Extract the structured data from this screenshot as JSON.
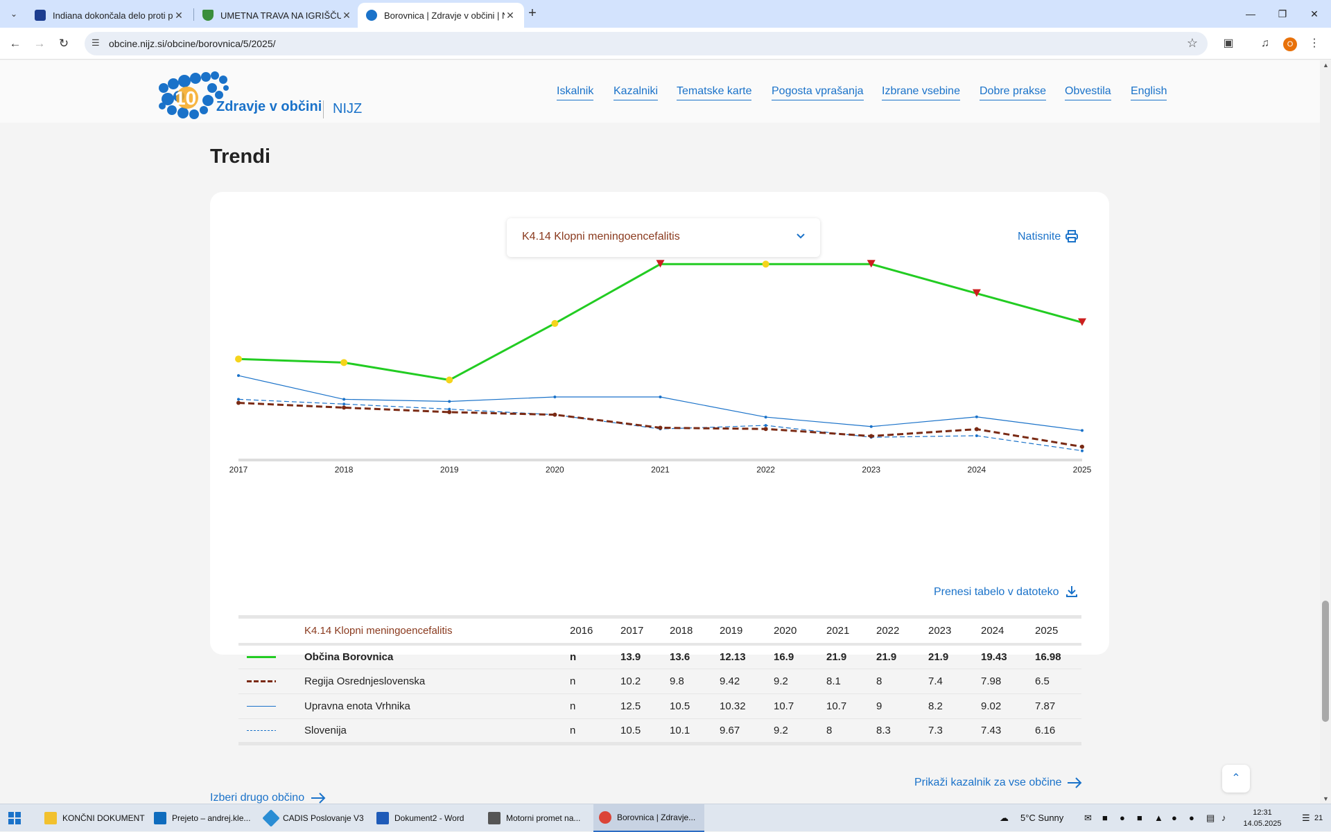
{
  "browser": {
    "tabs": [
      {
        "title": "Indiana dokončala delo proti pr",
        "active": false
      },
      {
        "title": "UMETNA TRAVA NA IGRIŠČU V",
        "active": false
      },
      {
        "title": "Borovnica | Zdravje v občini | NI",
        "active": true
      }
    ],
    "url": "obcine.nijz.si/obcine/borovnica/5/2025/",
    "profile_initial": "O"
  },
  "header": {
    "logo_number": "10",
    "logo_text": "Zdravje v občini",
    "logo_org": "NIJZ",
    "nav": [
      "Iskalnik",
      "Kazalniki",
      "Tematske karte",
      "Pogosta vprašanja",
      "Izbrane vsebine",
      "Dobre prakse",
      "Obvestila",
      "English"
    ]
  },
  "section": {
    "title": "Trendi",
    "indicator_select": "K4.14 Klopni meningoencefalitis",
    "print_label": "Natisnite",
    "download_label": "Prenesi tabelo v datoteko",
    "all_municipalities_label": "Prikaži kazalnik za vse občine",
    "other_municipality_label": "Izberi drugo občino"
  },
  "chart_data": {
    "type": "line",
    "title": "K4.14 Klopni meningoencefalitis",
    "x": [
      "2017",
      "2018",
      "2019",
      "2020",
      "2021",
      "2022",
      "2023",
      "2024",
      "2025"
    ],
    "ylim": [
      5.5,
      22.5
    ],
    "series": [
      {
        "name": "Občina Borovnica",
        "color": "#22cc22",
        "style": "solid-thick",
        "values": [
          13.9,
          13.6,
          12.13,
          16.9,
          21.9,
          21.9,
          21.9,
          19.43,
          16.98
        ],
        "markers": [
          "yellow",
          "yellow",
          "yellow",
          "yellow",
          "red-triangle",
          "yellow",
          "red-triangle",
          "red-triangle",
          "red-triangle"
        ]
      },
      {
        "name": "Regija Osrednjeslovenska",
        "color": "#7a2a14",
        "style": "dashed-thick",
        "values": [
          10.2,
          9.8,
          9.42,
          9.2,
          8.1,
          8,
          7.4,
          7.98,
          6.5
        ]
      },
      {
        "name": "Upravna enota Vrhnika",
        "color": "#1a72c9",
        "style": "solid-thin",
        "values": [
          12.5,
          10.5,
          10.32,
          10.7,
          10.7,
          9,
          8.2,
          9.02,
          7.87
        ]
      },
      {
        "name": "Slovenija",
        "color": "#1a72c9",
        "style": "dashed-thin",
        "values": [
          10.5,
          10.1,
          9.67,
          9.2,
          8,
          8.3,
          7.3,
          7.43,
          6.16
        ]
      }
    ]
  },
  "table": {
    "indicator": "K4.14 Klopni meningoencefalitis",
    "years": [
      "2016",
      "2017",
      "2018",
      "2019",
      "2020",
      "2021",
      "2022",
      "2023",
      "2024",
      "2025"
    ],
    "rows": [
      {
        "name": "Občina Borovnica",
        "values": [
          "n",
          "13.9",
          "13.6",
          "12.13",
          "16.9",
          "21.9",
          "21.9",
          "21.9",
          "19.43",
          "16.98"
        ]
      },
      {
        "name": "Regija Osrednjeslovenska",
        "values": [
          "n",
          "10.2",
          "9.8",
          "9.42",
          "9.2",
          "8.1",
          "8",
          "7.4",
          "7.98",
          "6.5"
        ]
      },
      {
        "name": "Upravna enota Vrhnika",
        "values": [
          "n",
          "12.5",
          "10.5",
          "10.32",
          "10.7",
          "10.7",
          "9",
          "8.2",
          "9.02",
          "7.87"
        ]
      },
      {
        "name": "Slovenija",
        "values": [
          "n",
          "10.5",
          "10.1",
          "9.67",
          "9.2",
          "8",
          "8.3",
          "7.3",
          "7.43",
          "6.16"
        ]
      }
    ]
  },
  "taskbar": {
    "apps": [
      "KONČNI DOKUMENT",
      "Prejeto – andrej.kle...",
      "CADIS Poslovanje V3",
      "Dokument2 - Word",
      "Motorni promet na...",
      "Borovnica | Zdravje..."
    ],
    "weather": "5°C  Sunny",
    "time": "12:31",
    "date": "14.05.2025",
    "notifications": "21"
  }
}
